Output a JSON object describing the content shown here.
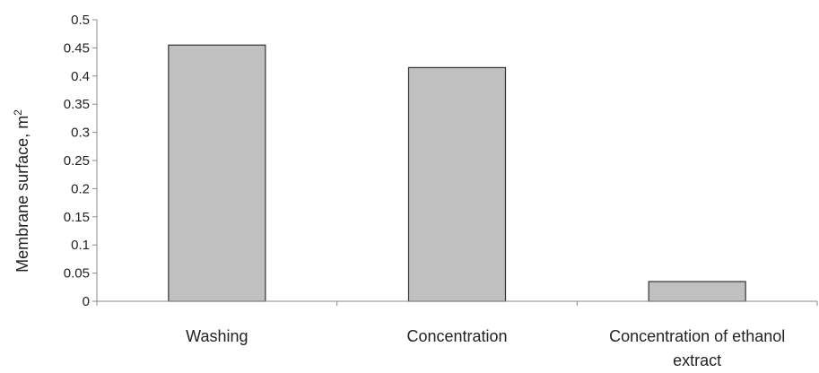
{
  "chart_data": {
    "type": "bar",
    "categories": [
      "Washing",
      "Concentration",
      "Concentration of ethanol extract"
    ],
    "values": [
      0.455,
      0.415,
      0.035
    ],
    "title": "",
    "xlabel": "",
    "ylabel": "Membrane surface, m",
    "ylabel_superscript": "2",
    "ylim": [
      0,
      0.5
    ],
    "yticks": [
      "0",
      "0.05",
      "0.1",
      "0.15",
      "0.2",
      "0.25",
      "0.3",
      "0.35",
      "0.4",
      "0.45",
      "0.5"
    ],
    "grid": false,
    "legend": "none",
    "bar_color": "#c0c0c0",
    "bar_edge_color": "#333333"
  }
}
